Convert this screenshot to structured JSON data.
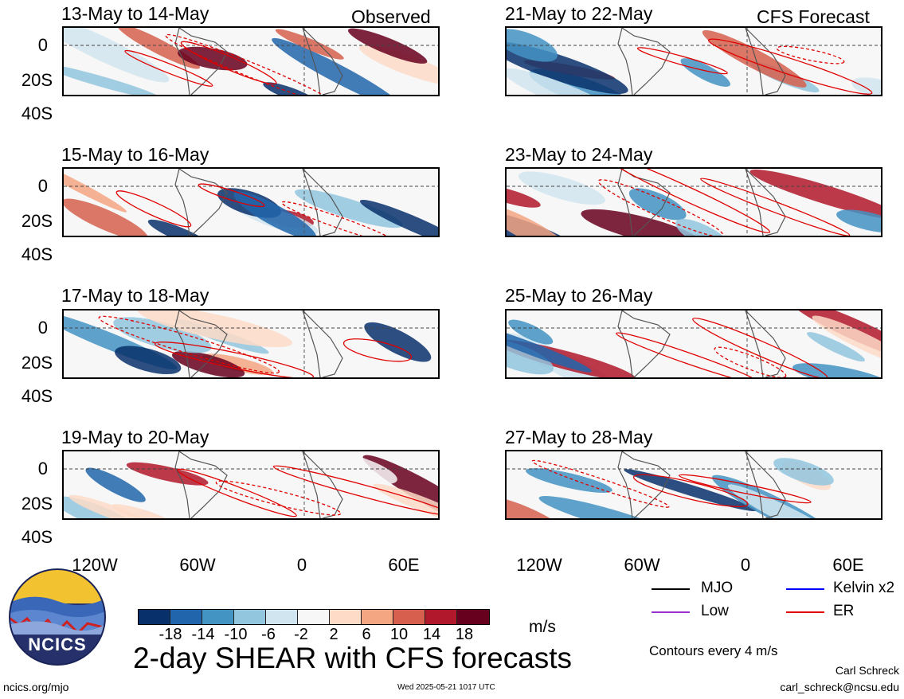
{
  "panels": {
    "p1": {
      "title": "13-May to 14-May",
      "tag": "Observed"
    },
    "p2": {
      "title": "15-May to 16-May"
    },
    "p3": {
      "title": "17-May to 18-May"
    },
    "p4": {
      "title": "19-May to 20-May"
    },
    "p5": {
      "title": "21-May to 22-May",
      "tag": "CFS Forecast"
    },
    "p6": {
      "title": "23-May to 24-May"
    },
    "p7": {
      "title": "25-May to 26-May"
    },
    "p8": {
      "title": "27-May to 28-May"
    }
  },
  "axes": {
    "lat_labels": [
      "0",
      "20S",
      "40S"
    ],
    "lon_labels": [
      "120W",
      "60W",
      "0",
      "60E"
    ]
  },
  "colorbar": {
    "colors": [
      "#08306b",
      "#2166ac",
      "#4393c3",
      "#92c5de",
      "#d1e5f0",
      "#f7f7f7",
      "#fddbc7",
      "#f4a582",
      "#d6604d",
      "#b2182b",
      "#67001f"
    ],
    "labels": [
      "-18",
      "-14",
      "-10",
      "-6",
      "-2",
      "2",
      "6",
      "10",
      "14",
      "18"
    ],
    "unit": "m/s"
  },
  "legend": {
    "mjo": {
      "label": "MJO",
      "color": "#000000"
    },
    "kelvin": {
      "label": "Kelvin x2",
      "color": "#0000ff"
    },
    "low": {
      "label": "Low",
      "color": "#9932cc"
    },
    "er": {
      "label": "ER",
      "color": "#e00000"
    },
    "contours": "Contours every 4 m/s"
  },
  "main_title": "2-day SHEAR with CFS forecasts",
  "logo_text": "NCICS",
  "footer": {
    "url": "ncics.org/mjo",
    "timestamp": "Wed 2025-05-21 1017 UTC",
    "author": "Carl Schreck",
    "email": "carl_schreck@ncsu.edu"
  }
}
